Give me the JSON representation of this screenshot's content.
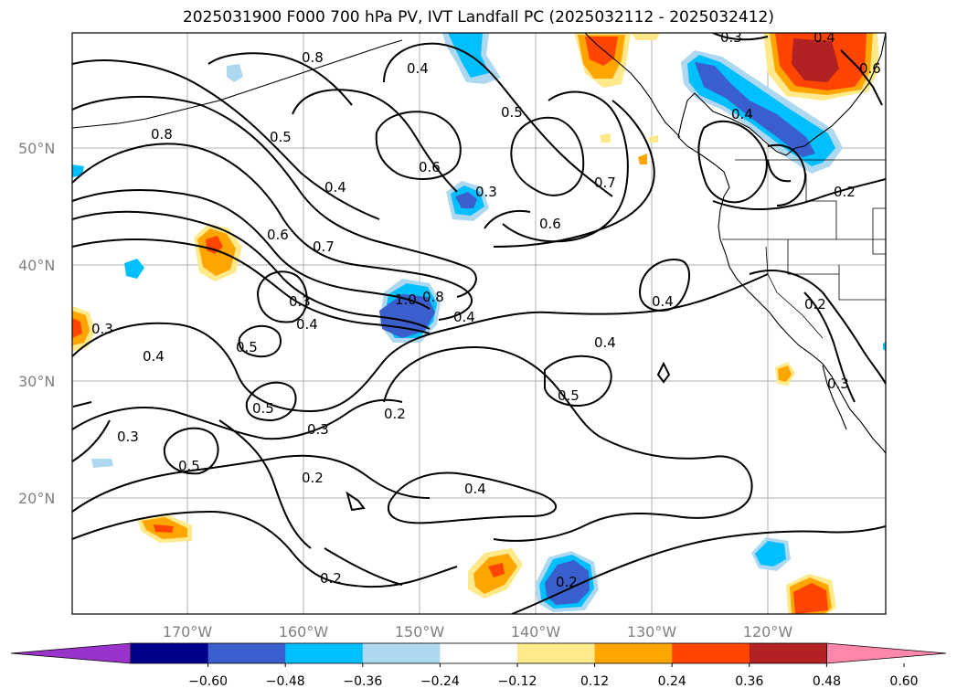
{
  "title": "2025031900 F000 700 hPa PV, IVT Landfall PC (2025032112 - 2025032412)",
  "lat_labels": [
    "50°N",
    "40°N",
    "30°N",
    "20°N"
  ],
  "lon_labels": [
    "170°W",
    "160°W",
    "150°W",
    "140°W",
    "130°W",
    "120°W"
  ],
  "contour_labels": [
    "0.8",
    "0.4",
    "0.5",
    "0.3",
    "0.4",
    "0.8",
    "0.5",
    "0.6",
    "0.7",
    "0.4",
    "0.6",
    "0.6",
    "0.7",
    "0.3",
    "1.0",
    "0.8",
    "0.4",
    "0.4",
    "0.3",
    "0.3",
    "0.4",
    "0.5",
    "0.5",
    "0.4",
    "0.5",
    "0.2",
    "0.3",
    "0.5",
    "0.3",
    "0.2",
    "0.4",
    "0.2",
    "0.2",
    "0.4",
    "0.2",
    "0.2",
    "0.4",
    "0.3",
    "0.6"
  ],
  "colorbar": {
    "colors": [
      "#9933cc",
      "#00008b",
      "#3a5fcd",
      "#00bfff",
      "#add8f0",
      "#ffffff",
      "#ffe98a",
      "#ffa500",
      "#ff4500",
      "#b22222",
      "#ff88aa"
    ],
    "ticks": [
      "−0.60",
      "−0.48",
      "−0.36",
      "−0.24",
      "−0.12",
      "0.12",
      "0.24",
      "0.36",
      "0.48",
      "0.60"
    ]
  }
}
